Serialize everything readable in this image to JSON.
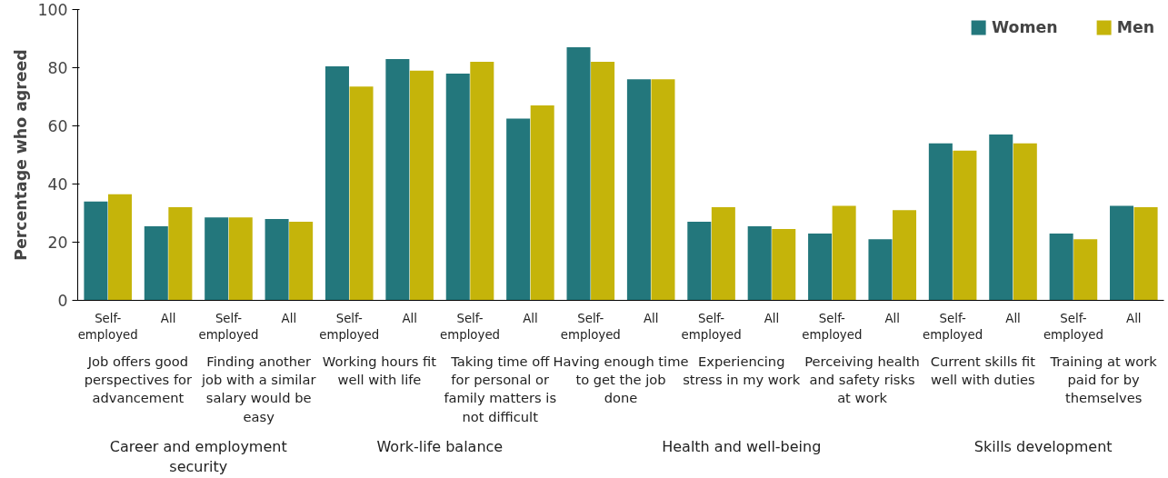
{
  "chart_data": {
    "type": "bar",
    "ylabel": "Percentage who agreed",
    "categories": [
      "Self-employed",
      "All",
      "Self-employed",
      "All",
      "Self-employed",
      "All",
      "Self-employed",
      "All",
      "Self-employed",
      "All",
      "Self-employed",
      "All",
      "Self-employed",
      "All",
      "Self-employed",
      "All",
      "Self-employed",
      "All"
    ],
    "series": [
      {
        "name": "Women",
        "color": "#23777c",
        "values": [
          34,
          25.5,
          28.5,
          28,
          80.5,
          83,
          78,
          62.5,
          87,
          76,
          27,
          25.5,
          23,
          21,
          54,
          57,
          23,
          32.5
        ]
      },
      {
        "name": "Men",
        "color": "#c5b40a",
        "values": [
          36.5,
          32,
          28.5,
          27,
          73.5,
          79,
          82,
          67,
          82,
          76,
          32,
          24.5,
          32.5,
          31,
          51.5,
          54,
          21,
          32
        ]
      }
    ],
    "ylim": [
      0,
      100
    ],
    "yticks": [
      0,
      20,
      40,
      60,
      80,
      100
    ],
    "grid": false,
    "legend": "top right",
    "annotations": [
      "Job offers good perspectives for advancement",
      "Finding another job with a similar salary would be easy",
      "Working hours fit well with life",
      "Taking time off for personal or family matters is not difficult",
      "Having enough time to get the job done",
      "Experiencing stress in my work",
      "Perceiving health and safety risks at work",
      "Current skills fit well with duties",
      "Training at work paid for by themselves",
      "Career and employment security",
      "Work-life balance",
      "Health and well-being",
      "Skills development"
    ]
  }
}
